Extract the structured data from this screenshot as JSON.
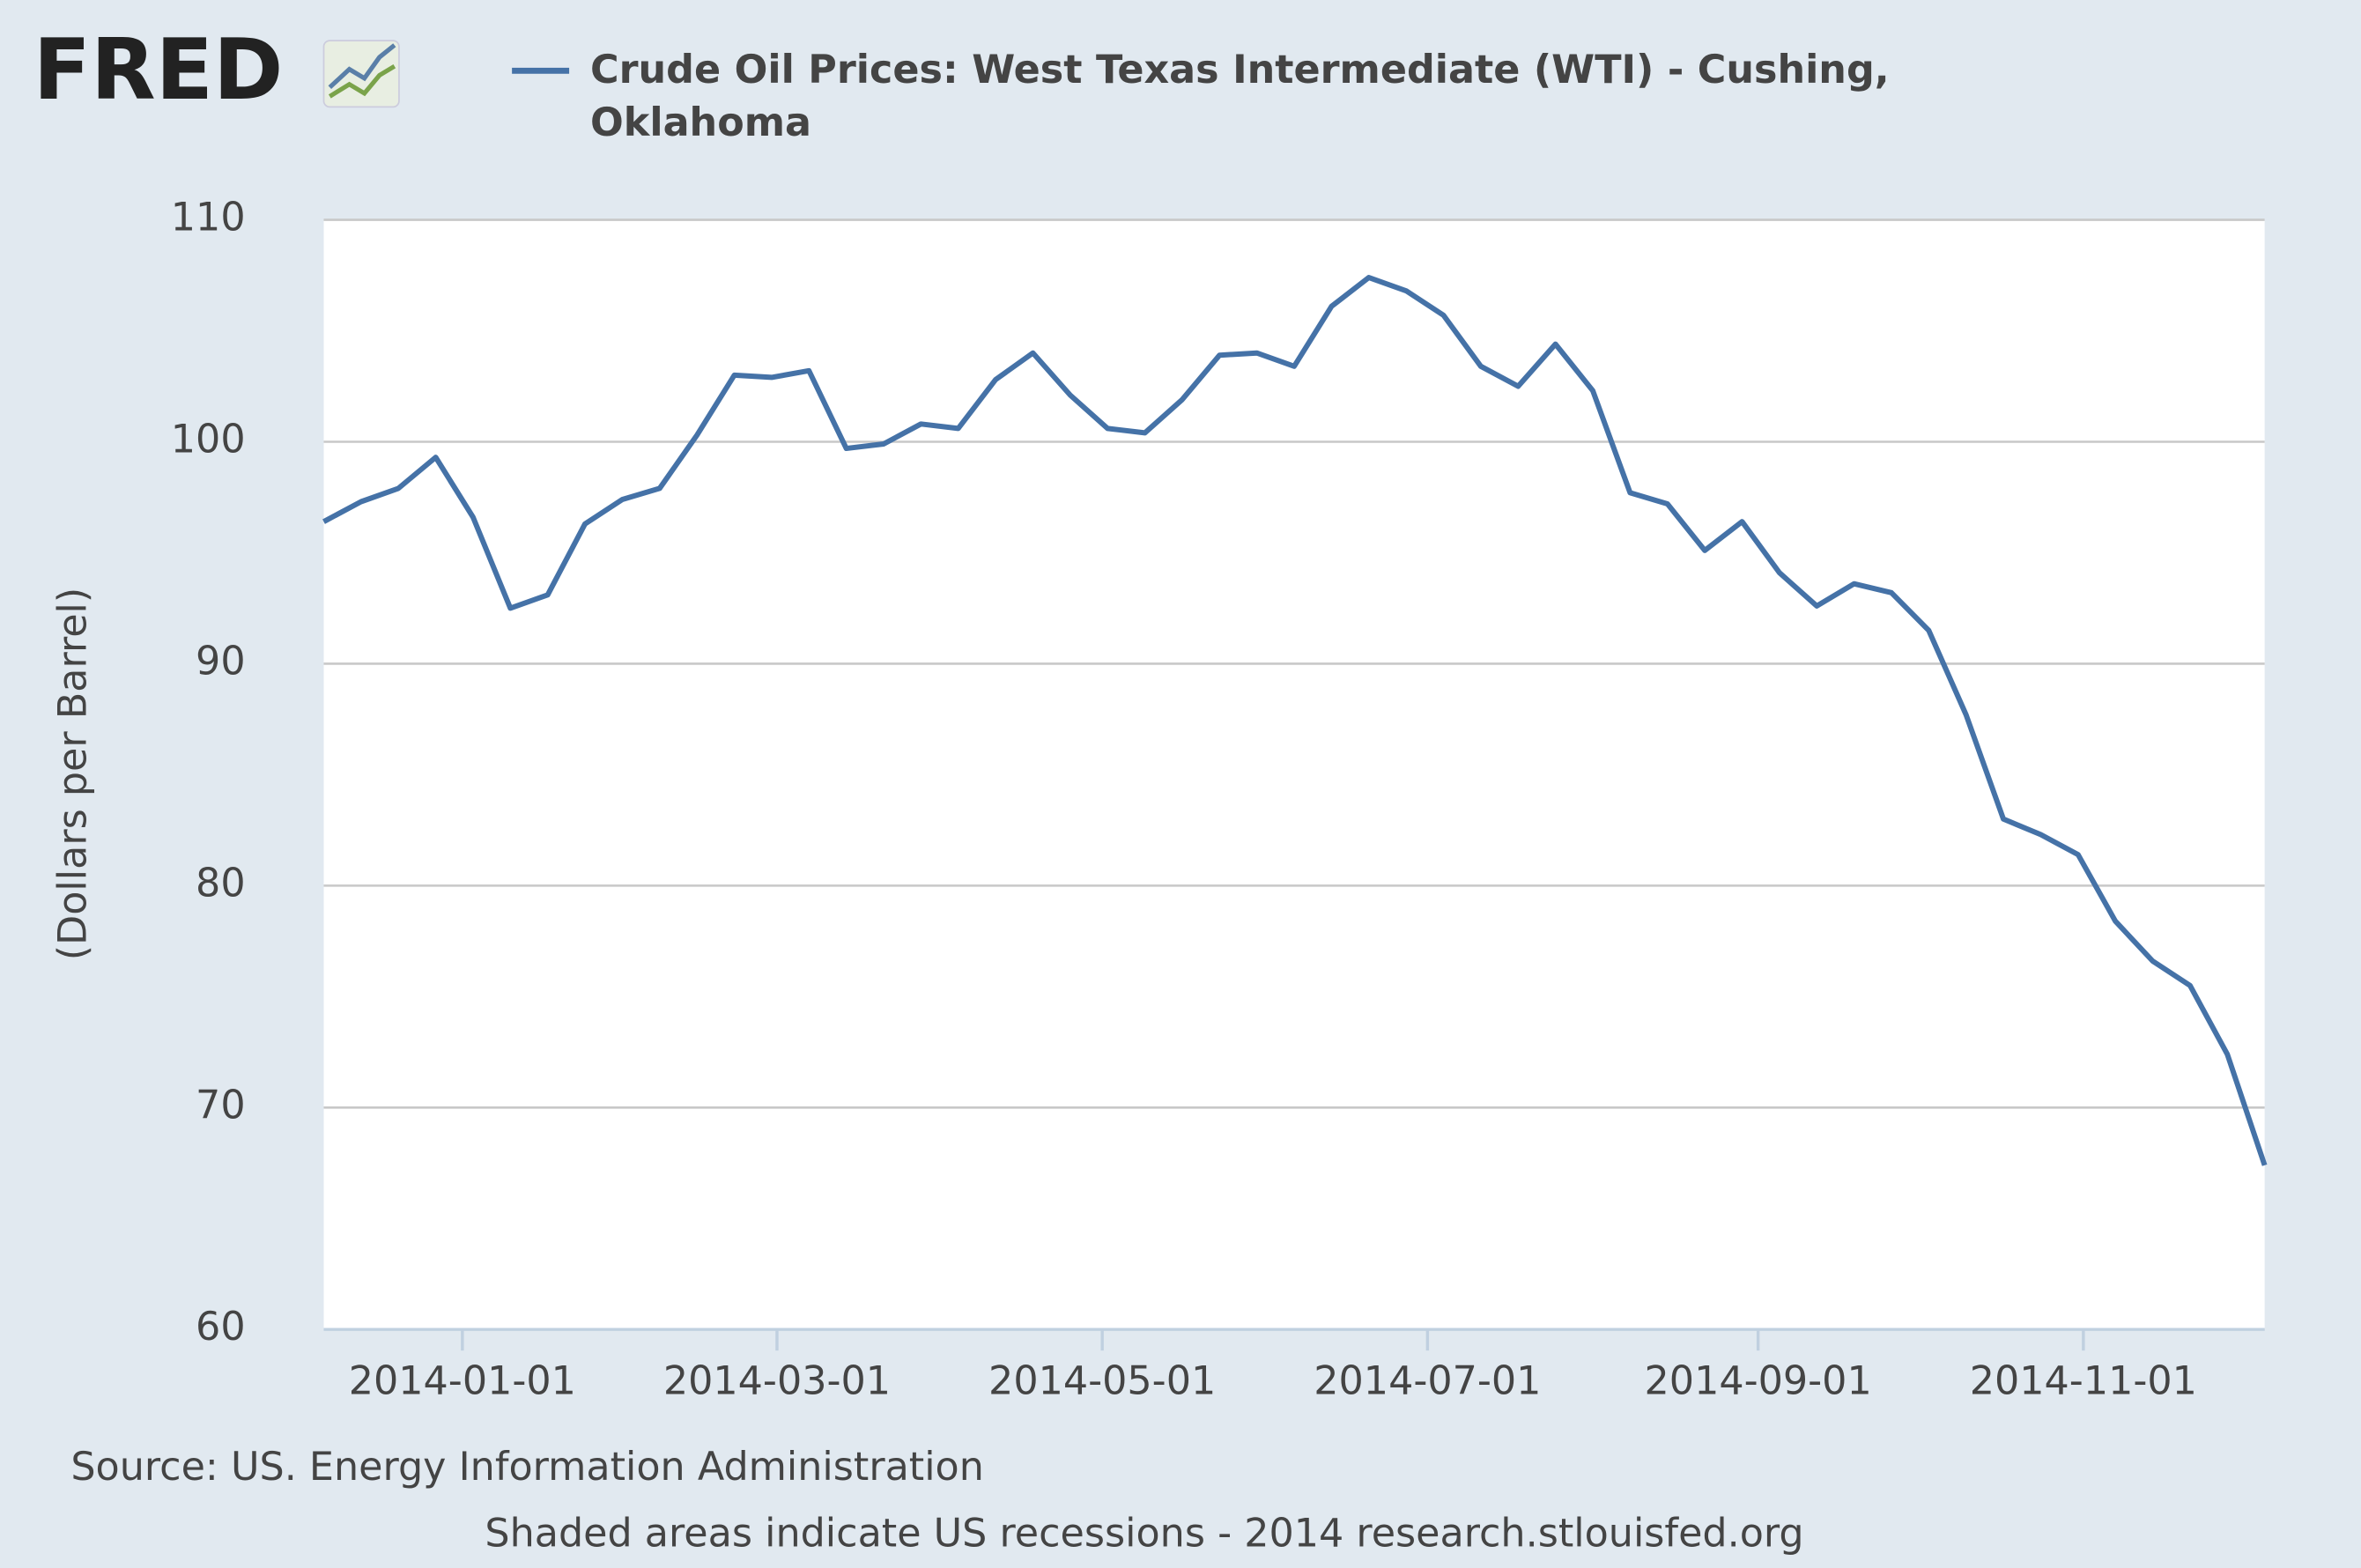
{
  "logo": "FRED",
  "chart_data": {
    "type": "line",
    "series": [
      {
        "name": "Crude Oil Prices: West Texas Intermediate (WTI) - Cushing, Oklahoma",
        "color": "#4572a7",
        "values": [
          96.4,
          97.3,
          97.9,
          99.3,
          96.6,
          92.5,
          93.1,
          96.3,
          97.4,
          97.9,
          100.3,
          103.0,
          102.9,
          103.2,
          99.7,
          99.9,
          100.8,
          100.6,
          102.8,
          104.0,
          102.1,
          100.6,
          100.4,
          101.9,
          103.9,
          104.0,
          103.4,
          106.1,
          107.4,
          106.8,
          105.7,
          103.4,
          102.5,
          104.4,
          102.3,
          97.7,
          97.2,
          95.1,
          96.4,
          94.1,
          92.6,
          93.6,
          93.2,
          91.5,
          87.7,
          83.0,
          82.3,
          81.4,
          78.4,
          76.6,
          75.5,
          72.4,
          67.4
        ]
      }
    ],
    "x": [
      "2013-12-06",
      "2013-12-13",
      "2013-12-20",
      "2013-12-27",
      "2014-01-03",
      "2014-01-10",
      "2014-01-17",
      "2014-01-24",
      "2014-01-31",
      "2014-02-07",
      "2014-02-14",
      "2014-02-21",
      "2014-02-28",
      "2014-03-07",
      "2014-03-14",
      "2014-03-21",
      "2014-03-28",
      "2014-04-04",
      "2014-04-11",
      "2014-04-18",
      "2014-04-25",
      "2014-05-02",
      "2014-05-09",
      "2014-05-16",
      "2014-05-23",
      "2014-05-30",
      "2014-06-06",
      "2014-06-13",
      "2014-06-20",
      "2014-06-27",
      "2014-07-04",
      "2014-07-11",
      "2014-07-18",
      "2014-07-25",
      "2014-08-01",
      "2014-08-08",
      "2014-08-15",
      "2014-08-22",
      "2014-08-29",
      "2014-09-05",
      "2014-09-12",
      "2014-09-19",
      "2014-09-26",
      "2014-10-03",
      "2014-10-10",
      "2014-10-17",
      "2014-10-24",
      "2014-10-31",
      "2014-11-07",
      "2014-11-14",
      "2014-11-21",
      "2014-11-28",
      "2014-12-05"
    ],
    "xlim": [
      "2013-12-06",
      "2014-12-05"
    ],
    "xticks": [
      "2014-01-01",
      "2014-03-01",
      "2014-05-01",
      "2014-07-01",
      "2014-09-01",
      "2014-11-01"
    ],
    "ylim": [
      60,
      110
    ],
    "yticks": [
      60,
      70,
      80,
      90,
      100,
      110
    ],
    "grid": true,
    "ylabel": "(Dollars per Barrel)",
    "source": "Source: US. Energy Information Administration",
    "footer": "Shaded areas indicate US recessions - 2014 research.stlouisfed.org"
  }
}
